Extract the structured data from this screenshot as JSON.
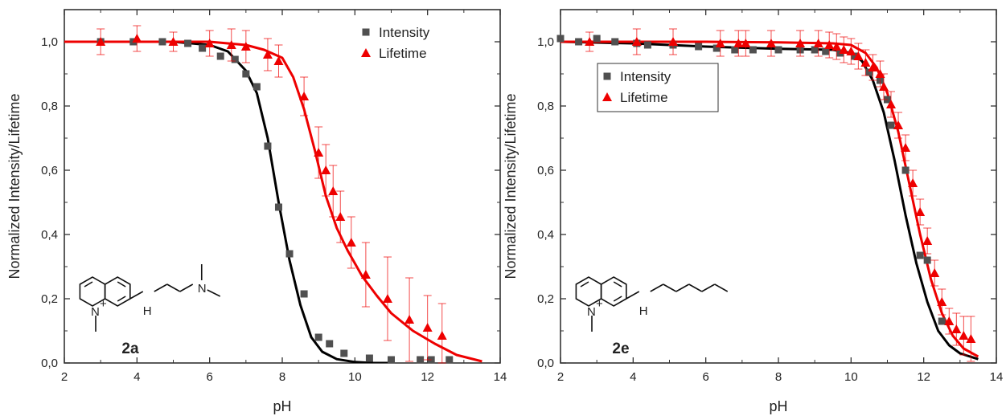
{
  "charts": [
    {
      "id": "2a",
      "panel_label": "2a",
      "xlabel": "pH",
      "ylabel": "Normalized Intensity/Lifetime",
      "xlim": [
        2,
        14
      ],
      "ylim": [
        0,
        1.1
      ],
      "xticks": [
        "2",
        "4",
        "6",
        "8",
        "10",
        "12",
        "14"
      ],
      "yticks": [
        "0,0",
        "0,2",
        "0,4",
        "0,6",
        "0,8",
        "1,0"
      ],
      "legend_position": "top-right",
      "legend": [
        {
          "label": "Intensity",
          "color": "#505050",
          "marker": "square"
        },
        {
          "label": "Lifetime",
          "color": "#ee0000",
          "marker": "triangle"
        }
      ],
      "molecule_labels": {
        "nitrogen": "N",
        "charge": "+",
        "nh": "H",
        "n_amine": "N"
      }
    },
    {
      "id": "2e",
      "panel_label": "2e",
      "xlabel": "pH",
      "ylabel": "Normalized Intensity/Lifetime",
      "xlim": [
        2,
        14
      ],
      "ylim": [
        0,
        1.1
      ],
      "xticks": [
        "2",
        "4",
        "6",
        "8",
        "10",
        "12",
        "14"
      ],
      "yticks": [
        "0,0",
        "0,2",
        "0,4",
        "0,6",
        "0,8",
        "1,0"
      ],
      "legend_position": "top-left",
      "legend": [
        {
          "label": "Intensity",
          "color": "#505050",
          "marker": "square"
        },
        {
          "label": "Lifetime",
          "color": "#ee0000",
          "marker": "triangle"
        }
      ],
      "molecule_labels": {
        "nitrogen": "N",
        "charge": "+",
        "nh": "H"
      }
    }
  ],
  "chart_data": [
    {
      "type": "scatter",
      "title": "",
      "xlabel": "pH",
      "ylabel": "Normalized Intensity/Lifetime",
      "xlim": [
        2,
        14
      ],
      "ylim": [
        0,
        1.1
      ],
      "grid": false,
      "legend": "top-right",
      "series": [
        {
          "name": "Intensity",
          "color": "#505050",
          "marker": "square",
          "x": [
            3.0,
            3.9,
            4.7,
            5.4,
            5.8,
            6.3,
            6.7,
            7.0,
            7.3,
            7.6,
            7.9,
            8.2,
            8.6,
            9.0,
            9.3,
            9.7,
            10.4,
            11.0,
            11.8,
            12.1,
            12.6
          ],
          "y": [
            1.0,
            1.0,
            1.0,
            0.995,
            0.98,
            0.955,
            0.945,
            0.9,
            0.86,
            0.675,
            0.485,
            0.34,
            0.215,
            0.08,
            0.06,
            0.03,
            0.015,
            0.01,
            0.01,
            0.01,
            0.01
          ]
        },
        {
          "name": "Lifetime",
          "color": "#ee0000",
          "marker": "triangle",
          "x": [
            3.0,
            4.0,
            5.0,
            6.0,
            6.6,
            7.0,
            7.6,
            7.9,
            8.6,
            9.0,
            9.2,
            9.4,
            9.6,
            9.9,
            10.3,
            10.9,
            11.5,
            12.0,
            12.4
          ],
          "y": [
            1.0,
            1.01,
            1.0,
            0.995,
            0.99,
            0.985,
            0.96,
            0.94,
            0.83,
            0.655,
            0.6,
            0.535,
            0.455,
            0.375,
            0.275,
            0.2,
            0.135,
            0.11,
            0.085
          ],
          "error": [
            0.04,
            0.04,
            0.03,
            0.04,
            0.05,
            0.05,
            0.05,
            0.05,
            0.06,
            0.08,
            0.08,
            0.08,
            0.08,
            0.08,
            0.1,
            0.13,
            0.13,
            0.1,
            0.1
          ]
        },
        {
          "name": "Intensity fit",
          "color": "#000000",
          "type": "line",
          "x": [
            2,
            5,
            6,
            6.5,
            7,
            7.3,
            7.6,
            7.9,
            8.2,
            8.5,
            8.8,
            9.1,
            9.5,
            10,
            10.5,
            11
          ],
          "y": [
            1.0,
            1.0,
            0.99,
            0.97,
            0.91,
            0.84,
            0.7,
            0.5,
            0.32,
            0.18,
            0.08,
            0.035,
            0.012,
            0.003,
            0.0,
            0.0
          ]
        },
        {
          "name": "Lifetime fit",
          "color": "#ee0000",
          "type": "line",
          "x": [
            2,
            6,
            7,
            7.5,
            8,
            8.3,
            8.6,
            8.9,
            9.2,
            9.5,
            9.8,
            10.2,
            10.6,
            11,
            11.6,
            12.2,
            12.8,
            13.5
          ],
          "y": [
            1.0,
            1.0,
            0.99,
            0.975,
            0.95,
            0.89,
            0.79,
            0.66,
            0.52,
            0.42,
            0.35,
            0.27,
            0.21,
            0.155,
            0.1,
            0.06,
            0.025,
            0.005
          ]
        }
      ]
    },
    {
      "type": "scatter",
      "title": "",
      "xlabel": "pH",
      "ylabel": "Normalized Intensity/Lifetime",
      "xlim": [
        2,
        14
      ],
      "ylim": [
        0,
        1.1
      ],
      "grid": false,
      "legend": "top-left",
      "series": [
        {
          "name": "Intensity",
          "color": "#505050",
          "marker": "square",
          "x": [
            2.0,
            2.5,
            3.0,
            3.5,
            4.1,
            4.4,
            5.1,
            5.8,
            6.3,
            6.8,
            7.3,
            8.0,
            8.6,
            9.0,
            9.3,
            9.7,
            10.1,
            10.5,
            10.8,
            11.0,
            11.1,
            11.5,
            11.9,
            12.1,
            12.5
          ],
          "y": [
            1.01,
            1.0,
            1.01,
            1.0,
            0.995,
            0.99,
            0.99,
            0.985,
            0.98,
            0.975,
            0.975,
            0.975,
            0.975,
            0.975,
            0.97,
            0.965,
            0.955,
            0.905,
            0.88,
            0.82,
            0.74,
            0.6,
            0.335,
            0.32,
            0.13
          ]
        },
        {
          "name": "Lifetime",
          "color": "#ee0000",
          "marker": "triangle",
          "x": [
            2.8,
            4.1,
            5.1,
            6.4,
            6.9,
            7.1,
            7.8,
            8.6,
            9.1,
            9.4,
            9.6,
            9.8,
            10.0,
            10.2,
            10.4,
            10.6,
            10.8,
            10.9,
            11.1,
            11.3,
            11.5,
            11.7,
            11.9,
            12.1,
            12.3,
            12.5,
            12.7,
            12.9,
            13.1,
            13.3
          ],
          "y": [
            1.0,
            1.0,
            1.0,
            0.995,
            0.995,
            0.995,
            0.995,
            0.995,
            0.995,
            0.99,
            0.985,
            0.975,
            0.97,
            0.955,
            0.935,
            0.92,
            0.9,
            0.86,
            0.805,
            0.74,
            0.67,
            0.56,
            0.47,
            0.38,
            0.28,
            0.19,
            0.13,
            0.105,
            0.085,
            0.075
          ],
          "error": [
            0.03,
            0.04,
            0.04,
            0.04,
            0.04,
            0.04,
            0.04,
            0.04,
            0.04,
            0.04,
            0.04,
            0.04,
            0.04,
            0.04,
            0.04,
            0.04,
            0.04,
            0.04,
            0.04,
            0.04,
            0.04,
            0.04,
            0.04,
            0.04,
            0.04,
            0.04,
            0.04,
            0.05,
            0.06,
            0.07
          ]
        },
        {
          "name": "Intensity fit",
          "color": "#000000",
          "type": "line",
          "x": [
            2,
            4,
            6,
            8,
            9.5,
            10,
            10.3,
            10.6,
            10.9,
            11.2,
            11.5,
            11.8,
            12.1,
            12.4,
            12.7,
            13.0,
            13.5
          ],
          "y": [
            1.0,
            0.995,
            0.985,
            0.978,
            0.975,
            0.965,
            0.94,
            0.88,
            0.78,
            0.63,
            0.46,
            0.31,
            0.19,
            0.1,
            0.055,
            0.03,
            0.012
          ]
        },
        {
          "name": "Lifetime fit",
          "color": "#ee0000",
          "type": "line",
          "x": [
            2,
            4,
            6,
            8,
            9.5,
            10,
            10.4,
            10.7,
            11.0,
            11.3,
            11.6,
            11.9,
            12.2,
            12.5,
            12.8,
            13.1,
            13.5
          ],
          "y": [
            1.0,
            1.0,
            1.0,
            0.998,
            0.995,
            0.99,
            0.965,
            0.92,
            0.84,
            0.72,
            0.56,
            0.4,
            0.26,
            0.155,
            0.085,
            0.045,
            0.02
          ]
        }
      ]
    }
  ]
}
